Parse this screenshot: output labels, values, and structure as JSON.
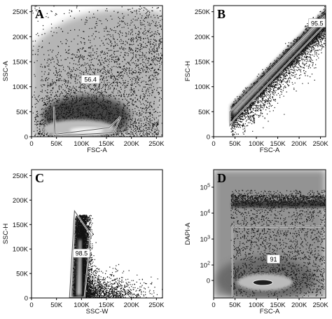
{
  "chart_data": [
    {
      "type": "scatter",
      "panel": "A",
      "xlabel": "FSC-A",
      "ylabel": "SSC-A",
      "x_ticks": [
        "0",
        "50K",
        "100K",
        "150K",
        "200K",
        "250K"
      ],
      "y_ticks": [
        "0",
        "50K",
        "100K",
        "150K",
        "200K",
        "250K"
      ],
      "xlim": [
        0,
        262144
      ],
      "ylim": [
        0,
        262144
      ],
      "gate_percent": "56.4",
      "gate_vertices": [
        [
          45000,
          2000
        ],
        [
          45000,
          60000
        ],
        [
          48000,
          5000
        ],
        [
          155000,
          18000
        ],
        [
          178000,
          40000
        ],
        [
          165000,
          8000
        ]
      ]
    },
    {
      "type": "scatter",
      "panel": "B",
      "xlabel": "FSC-A",
      "ylabel": "FSC-H",
      "x_ticks": [
        "0",
        "50K",
        "100K",
        "150K",
        "200K",
        "250K"
      ],
      "y_ticks": [
        "0",
        "50K",
        "100K",
        "150K",
        "200K",
        "250K"
      ],
      "xlim": [
        0,
        262144
      ],
      "ylim": [
        0,
        262144
      ],
      "gate_percent": "95.5",
      "gate_vertices": [
        [
          38000,
          22000
        ],
        [
          38000,
          50000
        ],
        [
          258000,
          240000
        ],
        [
          258000,
          222000
        ],
        [
          250000,
          215000
        ],
        [
          48000,
          35000
        ]
      ]
    },
    {
      "type": "scatter",
      "panel": "C",
      "xlabel": "SSC-W",
      "ylabel": "SSC-H",
      "x_ticks": [
        "0",
        "50K",
        "100K",
        "150K",
        "200K",
        "250K"
      ],
      "y_ticks": [
        "0",
        "50K",
        "100K",
        "150K",
        "200K",
        "250K"
      ],
      "xlim": [
        0,
        262144
      ],
      "ylim": [
        0,
        262144
      ],
      "gate_percent": "98.5",
      "gate_vertices": [
        [
          76000,
          1000
        ],
        [
          86000,
          178000
        ],
        [
          118000,
          130000
        ],
        [
          106000,
          1000
        ]
      ]
    },
    {
      "type": "scatter",
      "panel": "D",
      "xlabel": "FSC-A",
      "ylabel": "DAPI-A",
      "x_ticks": [
        "0",
        "50K",
        "100K",
        "150K",
        "200K",
        "250K"
      ],
      "y_ticks": [
        "0",
        "10^2",
        "10^3",
        "10^4",
        "10^5"
      ],
      "xlim": [
        0,
        262144
      ],
      "gate_percent": "91",
      "gate_box_x": [
        44000,
        262144
      ],
      "gate_box_y": [
        -100,
        3000
      ]
    }
  ]
}
